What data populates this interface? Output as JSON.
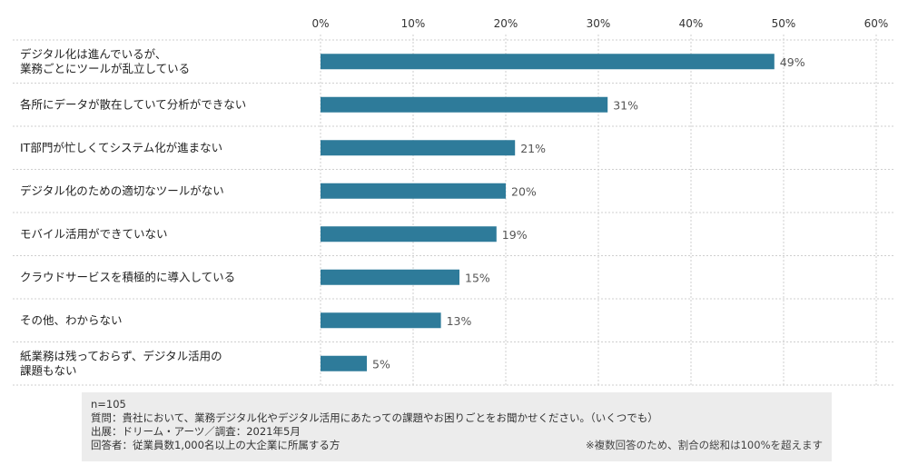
{
  "chart_data": {
    "type": "bar",
    "orientation": "horizontal",
    "categories": [
      [
        "デジタル化は進んでいるが、",
        "業務ごとにツールが乱立している"
      ],
      [
        "各所にデータが散在していて分析ができない"
      ],
      [
        "IT部門が忙しくてシステム化が進まない"
      ],
      [
        "デジタル化のための適切なツールがない"
      ],
      [
        "モバイル活用ができていない"
      ],
      [
        "クラウドサービスを積極的に導入している"
      ],
      [
        "その他、わからない"
      ],
      [
        "紙業務は残っておらず、デジタル活用の",
        "課題もない"
      ]
    ],
    "values": [
      49,
      31,
      21,
      20,
      19,
      15,
      13,
      5
    ],
    "value_labels": [
      "49%",
      "31%",
      "21%",
      "20%",
      "19%",
      "15%",
      "13%",
      "5%"
    ],
    "xlim": [
      0,
      60
    ],
    "ticks": [
      0,
      10,
      20,
      30,
      40,
      50,
      60
    ],
    "tick_labels": [
      "0%",
      "10%",
      "20%",
      "30%",
      "40%",
      "50%",
      "60%"
    ],
    "axis_position": "top",
    "grid": true,
    "bar_color": "#2e7b9a",
    "grid_color": "#cfcfcf"
  },
  "notes": {
    "n": "n=105",
    "question": "質問：貴社において、業務デジタル化やデジタル活用にあたっての課題やお困りごとをお聞かせください。（いくつでも）",
    "source": "出展：ドリーム・アーツ／調査：2021年5月",
    "respondents": "回答者：従業員数1,000名以上の大企業に所属する方",
    "remark": "※複数回答のため、割合の総和は100%を超えます"
  }
}
